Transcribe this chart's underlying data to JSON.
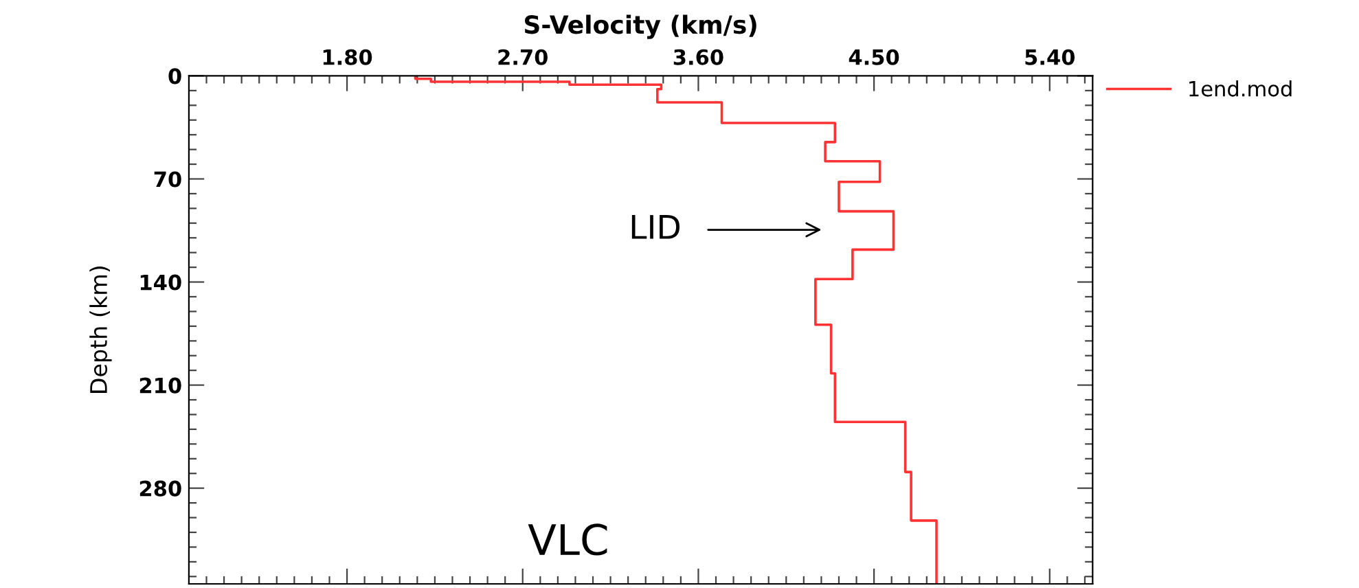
{
  "chart_data": {
    "type": "line",
    "xlabel": "S-Velocity (km/s)",
    "ylabel": "Depth (km)",
    "xlim": [
      0.99,
      5.62
    ],
    "ylim": [
      345,
      0
    ],
    "xticks": [
      {
        "value": 1.08,
        "label": null
      },
      {
        "value": 1.17,
        "label": null
      },
      {
        "value": 1.26,
        "label": null
      },
      {
        "value": 1.35,
        "label": null
      },
      {
        "value": 1.44,
        "label": null
      },
      {
        "value": 1.53,
        "label": null
      },
      {
        "value": 1.62,
        "label": null
      },
      {
        "value": 1.71,
        "label": null
      },
      {
        "value": 1.8,
        "label": "1.80"
      },
      {
        "value": 1.89,
        "label": null
      },
      {
        "value": 1.98,
        "label": null
      },
      {
        "value": 2.07,
        "label": null
      },
      {
        "value": 2.16,
        "label": null
      },
      {
        "value": 2.25,
        "label": null
      },
      {
        "value": 2.34,
        "label": null
      },
      {
        "value": 2.43,
        "label": null
      },
      {
        "value": 2.52,
        "label": null
      },
      {
        "value": 2.61,
        "label": null
      },
      {
        "value": 2.7,
        "label": "2.70"
      },
      {
        "value": 2.79,
        "label": null
      },
      {
        "value": 2.88,
        "label": null
      },
      {
        "value": 2.97,
        "label": null
      },
      {
        "value": 3.06,
        "label": null
      },
      {
        "value": 3.15,
        "label": null
      },
      {
        "value": 3.24,
        "label": null
      },
      {
        "value": 3.33,
        "label": null
      },
      {
        "value": 3.42,
        "label": null
      },
      {
        "value": 3.51,
        "label": null
      },
      {
        "value": 3.6,
        "label": "3.60"
      },
      {
        "value": 3.69,
        "label": null
      },
      {
        "value": 3.78,
        "label": null
      },
      {
        "value": 3.87,
        "label": null
      },
      {
        "value": 3.96,
        "label": null
      },
      {
        "value": 4.05,
        "label": null
      },
      {
        "value": 4.14,
        "label": null
      },
      {
        "value": 4.23,
        "label": null
      },
      {
        "value": 4.32,
        "label": null
      },
      {
        "value": 4.41,
        "label": null
      },
      {
        "value": 4.5,
        "label": "4.50"
      },
      {
        "value": 4.59,
        "label": null
      },
      {
        "value": 4.68,
        "label": null
      },
      {
        "value": 4.77,
        "label": null
      },
      {
        "value": 4.86,
        "label": null
      },
      {
        "value": 4.95,
        "label": null
      },
      {
        "value": 5.04,
        "label": null
      },
      {
        "value": 5.13,
        "label": null
      },
      {
        "value": 5.22,
        "label": null
      },
      {
        "value": 5.31,
        "label": null
      },
      {
        "value": 5.4,
        "label": "5.40"
      },
      {
        "value": 5.49,
        "label": null
      },
      {
        "value": 5.58,
        "label": null
      }
    ],
    "yticks": [
      0,
      {
        "value": 10,
        "label": null
      },
      {
        "value": 20,
        "label": null
      },
      {
        "value": 30,
        "label": null
      },
      {
        "value": 40,
        "label": null
      },
      {
        "value": 50,
        "label": null
      },
      {
        "value": 60,
        "label": null
      },
      70,
      {
        "value": 80,
        "label": null
      },
      {
        "value": 90,
        "label": null
      },
      {
        "value": 100,
        "label": null
      },
      {
        "value": 110,
        "label": null
      },
      {
        "value": 120,
        "label": null
      },
      {
        "value": 130,
        "label": null
      },
      140,
      {
        "value": 150,
        "label": null
      },
      {
        "value": 160,
        "label": null
      },
      {
        "value": 170,
        "label": null
      },
      {
        "value": 180,
        "label": null
      },
      {
        "value": 190,
        "label": null
      },
      {
        "value": 200,
        "label": null
      },
      210,
      {
        "value": 220,
        "label": null
      },
      {
        "value": 230,
        "label": null
      },
      {
        "value": 240,
        "label": null
      },
      {
        "value": 250,
        "label": null
      },
      {
        "value": 260,
        "label": null
      },
      {
        "value": 270,
        "label": null
      },
      280,
      {
        "value": 290,
        "label": null
      },
      {
        "value": 300,
        "label": null
      },
      {
        "value": 310,
        "label": null
      },
      {
        "value": 320,
        "label": null
      },
      {
        "value": 330,
        "label": null
      },
      {
        "value": 340,
        "label": null
      }
    ],
    "series": [
      {
        "name": "1end.mod",
        "color": "#ff3333",
        "x": [
          2.15,
          2.15,
          2.23,
          2.23,
          2.94,
          2.94,
          3.41,
          3.41,
          3.39,
          3.39,
          3.72,
          3.72,
          4.3,
          4.3,
          4.25,
          4.25,
          4.53,
          4.53,
          4.32,
          4.32,
          4.6,
          4.6,
          4.39,
          4.39,
          4.2,
          4.2,
          4.28,
          4.28,
          4.3,
          4.3,
          4.66,
          4.66,
          4.69,
          4.69,
          4.82,
          4.82
        ],
        "values": [
          0,
          2,
          2,
          4,
          4,
          6,
          6,
          9,
          9,
          18,
          18,
          32,
          32,
          45,
          45,
          58,
          58,
          72,
          72,
          92,
          92,
          118,
          118,
          138,
          138,
          169,
          169,
          202,
          202,
          235,
          235,
          269,
          269,
          302,
          302,
          345
        ]
      }
    ],
    "annotations": [
      "LID",
      "VLC"
    ],
    "legend": "top right",
    "grid": false
  }
}
